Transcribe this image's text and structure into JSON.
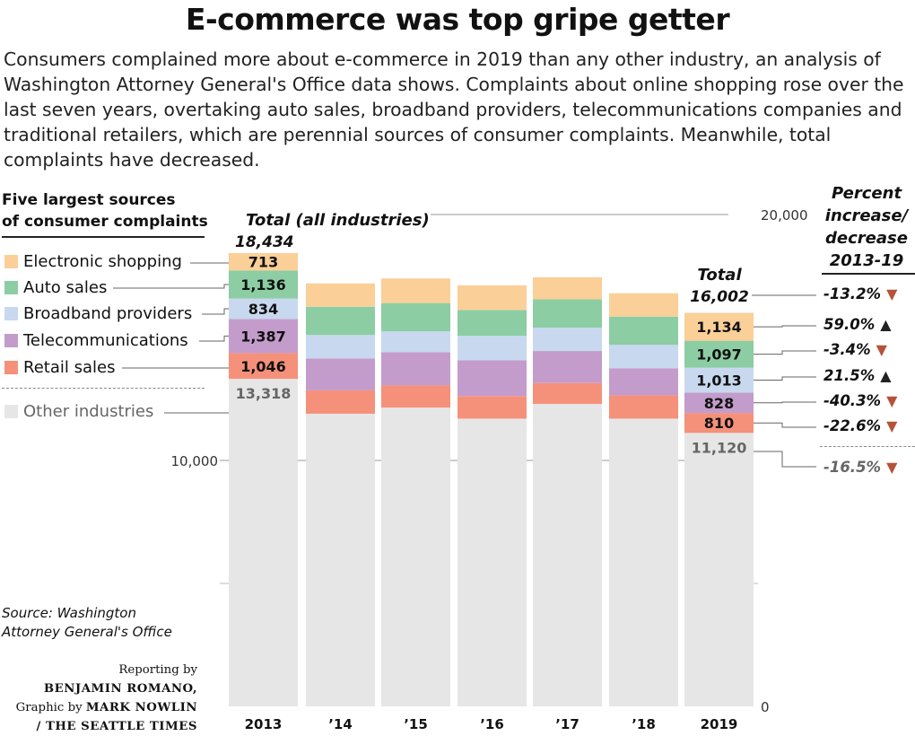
{
  "title": "E-commerce was top gripe getter",
  "subtitle": "Consumers complained more about e-commerce in 2019 than any other industry, an analysis of Washington Attorney General's Office data shows. Complaints about online shopping rose over the last seven years, overtaking auto sales, broadband providers, telecommunications companies and traditional retailers, which are perennial sources of consumer complaints. Meanwhile, total complaints have decreased.",
  "legend_heading": [
    "Five largest sources",
    "of consumer complaints"
  ],
  "pct_heading": [
    "Percent",
    "increase/",
    "decrease",
    "2013-19"
  ],
  "source": [
    "Source: Washington",
    "Attorney General's Office"
  ],
  "credit": {
    "line1": "Reporting by",
    "reporter": "BENJAMIN ROMANO,",
    "line3_prefix": "Graphic by",
    "designer": "MARK NOWLIN",
    "outlet": "/ THE SEATTLE TIMES"
  },
  "total_label": "Total (all industries)",
  "total_2013_label": "18,434",
  "total_2019_label": [
    "Total",
    "16,002"
  ],
  "chart_data": {
    "type": "bar",
    "stacked": true,
    "categories": [
      "2013",
      "’14",
      "’15",
      "’16",
      "’17",
      "’18",
      "2019"
    ],
    "ylim": [
      0,
      20000
    ],
    "yticks": [
      0,
      10000,
      20000
    ],
    "ytick_labels": [
      "0",
      "10,000",
      "20,000"
    ],
    "series": [
      {
        "name": "Other industries",
        "color": "#e6e6e6",
        "values": [
          13318,
          11900,
          12150,
          11700,
          12300,
          11700,
          11120
        ]
      },
      {
        "name": "Retail sales",
        "color": "#f5917a",
        "values": [
          1046,
          950,
          900,
          920,
          850,
          950,
          810
        ]
      },
      {
        "name": "Telecommunications",
        "color": "#c39ccb",
        "values": [
          1387,
          1300,
          1350,
          1450,
          1300,
          1100,
          828
        ]
      },
      {
        "name": "Broadband providers",
        "color": "#c8d8ee",
        "values": [
          834,
          950,
          850,
          1000,
          950,
          950,
          1013
        ]
      },
      {
        "name": "Auto sales",
        "color": "#8ccda4",
        "values": [
          1136,
          1150,
          1150,
          1050,
          1150,
          1150,
          1097
        ]
      },
      {
        "name": "Electronic shopping",
        "color": "#fbcf98",
        "values": [
          713,
          950,
          1000,
          1000,
          900,
          950,
          1134
        ]
      }
    ],
    "labels_2013": [
      "13,318",
      "1,046",
      "1,387",
      "834",
      "1,136",
      "713"
    ],
    "labels_2019": [
      "11,120",
      "810",
      "828",
      "1,013",
      "1,097",
      "1,134"
    ],
    "percent_change": [
      {
        "label": "-13.2%",
        "direction": "down",
        "for": "Total"
      },
      {
        "label": "59.0%",
        "direction": "up",
        "for": "Electronic shopping"
      },
      {
        "label": "-3.4%",
        "direction": "down",
        "for": "Auto sales"
      },
      {
        "label": "21.5%",
        "direction": "up",
        "for": "Broadband providers"
      },
      {
        "label": "-40.3%",
        "direction": "down",
        "for": "Telecommunications"
      },
      {
        "label": "-22.6%",
        "direction": "down",
        "for": "Retail sales"
      },
      {
        "label": "-16.5%",
        "direction": "down",
        "for": "Other industries"
      }
    ],
    "colors": {
      "up_arrow": "#222222",
      "down_arrow": "#b5533a"
    }
  }
}
